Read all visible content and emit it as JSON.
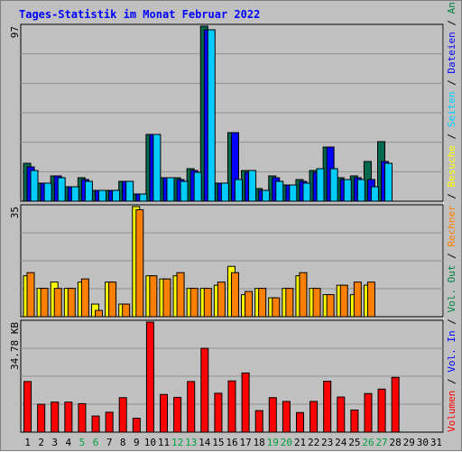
{
  "title": "Tages-Statistik im Monat Februar 2022",
  "colors": {
    "anfragen": "#006a4e",
    "dateien": "#0000ff",
    "seiten": "#00ccff",
    "besuche": "#ffff00",
    "rechner": "#ff8000",
    "vol_out": "#00a040",
    "vol_in": "#0000ff",
    "volumen": "#ff0000",
    "weekend_label": "#00a040",
    "plot_bg": "#c0c0c0",
    "separator": "#ffffff"
  },
  "legend": {
    "right_top": [
      {
        "text": "Anfragen",
        "color": "#008040"
      },
      {
        "text": "/",
        "color": "#000000"
      },
      {
        "text": "Dateien",
        "color": "#0000ff"
      },
      {
        "text": "/",
        "color": "#000000"
      },
      {
        "text": "Seiten",
        "color": "#00ccff"
      },
      {
        "text": "/",
        "color": "#000000"
      },
      {
        "text": "Besuche",
        "color": "#ffff00"
      },
      {
        "text": "/",
        "color": "#000000"
      },
      {
        "text": "Rechner",
        "color": "#ff8000"
      },
      {
        "text": "/",
        "color": "#000000"
      },
      {
        "text": "Vol. Out",
        "color": "#008040"
      },
      {
        "text": "/",
        "color": "#000000"
      },
      {
        "text": "Vol. In",
        "color": "#0000ff"
      },
      {
        "text": "/",
        "color": "#000000"
      },
      {
        "text": "Volumen",
        "color": "#ff0000"
      }
    ]
  },
  "chart_data": {
    "type": "bar",
    "title": "Tages-Statistik im Monat Februar 2022",
    "x": [
      "1",
      "2",
      "3",
      "4",
      "5",
      "6",
      "7",
      "8",
      "9",
      "10",
      "11",
      "12",
      "13",
      "14",
      "15",
      "16",
      "17",
      "18",
      "19",
      "20",
      "21",
      "22",
      "23",
      "24",
      "25",
      "26",
      "27",
      "28",
      "29",
      "30",
      "31"
    ],
    "weekend_days": [
      "5",
      "6",
      "12",
      "13",
      "19",
      "20",
      "26",
      "27"
    ],
    "panels": [
      {
        "name": "top",
        "ymax_label": "97",
        "ylim": [
          0,
          97
        ],
        "series": [
          {
            "name": "Anfragen",
            "values": [
              21,
              10,
              14,
              8,
              13,
              6,
              6,
              11,
              4,
              37,
              13,
              13,
              18,
              97,
              10,
              38,
              17,
              7,
              14,
              9,
              12,
              17,
              30,
              13,
              14,
              22,
              33,
              0,
              0,
              0,
              0
            ]
          },
          {
            "name": "Dateien",
            "values": [
              19,
              10,
              14,
              8,
              12,
              6,
              6,
              11,
              4,
              37,
              13,
              12,
              17,
              95,
              10,
              38,
              16,
              6,
              13,
              9,
              11,
              16,
              30,
              12,
              13,
              12,
              22,
              0,
              0,
              0,
              0
            ]
          },
          {
            "name": "Seiten",
            "values": [
              17,
              10,
              13,
              8,
              11,
              6,
              6,
              11,
              4,
              37,
              13,
              11,
              16,
              95,
              10,
              12,
              17,
              6,
              11,
              9,
              10,
              18,
              18,
              12,
              12,
              8,
              21,
              0,
              0,
              0,
              0
            ]
          }
        ]
      },
      {
        "name": "middle",
        "ymax_label": "35",
        "ylim": [
          0,
          35
        ],
        "series": [
          {
            "name": "Besuche",
            "values": [
              13,
              9,
              11,
              9,
              11,
              4,
              11,
              4,
              35,
              13,
              12,
              13,
              9,
              9,
              10,
              16,
              7,
              9,
              6,
              9,
              13,
              9,
              7,
              10,
              7,
              10,
              0,
              0,
              0,
              0,
              0
            ]
          },
          {
            "name": "Rechner",
            "values": [
              14,
              9,
              9,
              9,
              12,
              2,
              11,
              4,
              34,
              13,
              12,
              14,
              9,
              9,
              11,
              14,
              8,
              9,
              6,
              9,
              14,
              9,
              7,
              10,
              11,
              11,
              0,
              0,
              0,
              0,
              0
            ]
          }
        ]
      },
      {
        "name": "bottom",
        "ymax_label": "34.78 KB",
        "ylim": [
          0,
          34.78
        ],
        "series": [
          {
            "name": "Volumen",
            "values": [
              16.0,
              8.8,
              9.5,
              9.5,
              9.0,
              5.1,
              6.3,
              10.9,
              4.4,
              34.78,
              11.9,
              11.0,
              16.0,
              26.5,
              12.3,
              16.2,
              18.7,
              6.8,
              10.9,
              9.7,
              6.2,
              9.7,
              16.1,
              11.1,
              7.0,
              12.2,
              13.6,
              17.3,
              0,
              0,
              0
            ]
          }
        ]
      }
    ]
  }
}
